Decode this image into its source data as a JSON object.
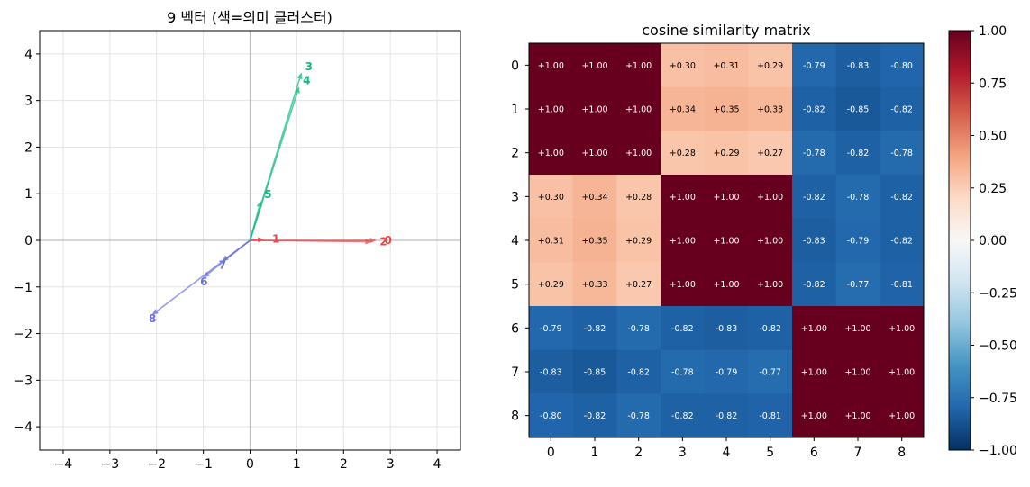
{
  "chart_data": [
    {
      "type": "scatter",
      "title": "9 벡터 (색=의미 클러스터)",
      "xlim": [
        -4.5,
        4.5
      ],
      "ylim": [
        -4.5,
        4.5
      ],
      "xticks": [
        "−4",
        "−3",
        "−2",
        "−1",
        "0",
        "1",
        "2",
        "3",
        "4"
      ],
      "yticks": [
        "4",
        "3",
        "2",
        "1",
        "0",
        "−1",
        "−2",
        "−3",
        "−4"
      ],
      "grid": true,
      "vectors": [
        {
          "label": "0",
          "x": 2.7,
          "y": 0.0,
          "color": "#e5484d"
        },
        {
          "label": "1",
          "x": 0.3,
          "y": 0.02,
          "color": "#e5484d"
        },
        {
          "label": "2",
          "x": 2.6,
          "y": -0.03,
          "color": "#e5484d"
        },
        {
          "label": "3",
          "x": 1.1,
          "y": 3.6,
          "color": "#12b886"
        },
        {
          "label": "4",
          "x": 1.05,
          "y": 3.3,
          "color": "#12b886"
        },
        {
          "label": "5",
          "x": 0.23,
          "y": 0.85,
          "color": "#12b886"
        },
        {
          "label": "6",
          "x": -1.0,
          "y": -0.8,
          "color": "#6a70e0"
        },
        {
          "label": "7",
          "x": -0.6,
          "y": -0.45,
          "color": "#6a70e0"
        },
        {
          "label": "8",
          "x": -2.1,
          "y": -1.6,
          "color": "#6a70e0"
        }
      ]
    },
    {
      "type": "heatmap",
      "title": "cosine similarity matrix",
      "row_labels": [
        "0",
        "1",
        "2",
        "3",
        "4",
        "5",
        "6",
        "7",
        "8"
      ],
      "col_labels": [
        "0",
        "1",
        "2",
        "3",
        "4",
        "5",
        "6",
        "7",
        "8"
      ],
      "colorscale": "RdBu_r",
      "vmin": -1.0,
      "vmax": 1.0,
      "colorbar_ticks": [
        "1.00",
        "0.75",
        "0.50",
        "0.25",
        "0.00",
        "−0.25",
        "−0.50",
        "−0.75",
        "−1.00"
      ],
      "values": [
        [
          1.0,
          1.0,
          1.0,
          0.3,
          0.31,
          0.29,
          -0.79,
          -0.83,
          -0.8
        ],
        [
          1.0,
          1.0,
          1.0,
          0.34,
          0.35,
          0.33,
          -0.82,
          -0.85,
          -0.82
        ],
        [
          1.0,
          1.0,
          1.0,
          0.28,
          0.29,
          0.27,
          -0.78,
          -0.82,
          -0.78
        ],
        [
          0.3,
          0.34,
          0.28,
          1.0,
          1.0,
          1.0,
          -0.82,
          -0.78,
          -0.82
        ],
        [
          0.31,
          0.35,
          0.29,
          1.0,
          1.0,
          1.0,
          -0.83,
          -0.79,
          -0.82
        ],
        [
          0.29,
          0.33,
          0.27,
          1.0,
          1.0,
          1.0,
          -0.82,
          -0.77,
          -0.81
        ],
        [
          -0.79,
          -0.82,
          -0.78,
          -0.82,
          -0.83,
          -0.82,
          1.0,
          1.0,
          1.0
        ],
        [
          -0.83,
          -0.85,
          -0.82,
          -0.78,
          -0.79,
          -0.77,
          1.0,
          1.0,
          1.0
        ],
        [
          -0.8,
          -0.82,
          -0.78,
          -0.82,
          -0.82,
          -0.81,
          1.0,
          1.0,
          1.0
        ]
      ],
      "cell_labels": [
        [
          "+1.00",
          "+1.00",
          "+1.00",
          "+0.30",
          "+0.31",
          "+0.29",
          "-0.79",
          "-0.83",
          "-0.80"
        ],
        [
          "+1.00",
          "+1.00",
          "+1.00",
          "+0.34",
          "+0.35",
          "+0.33",
          "-0.82",
          "-0.85",
          "-0.82"
        ],
        [
          "+1.00",
          "+1.00",
          "+1.00",
          "+0.28",
          "+0.29",
          "+0.27",
          "-0.78",
          "-0.82",
          "-0.78"
        ],
        [
          "+0.30",
          "+0.34",
          "+0.28",
          "+1.00",
          "+1.00",
          "+1.00",
          "-0.82",
          "-0.78",
          "-0.82"
        ],
        [
          "+0.31",
          "+0.35",
          "+0.29",
          "+1.00",
          "+1.00",
          "+1.00",
          "-0.83",
          "-0.79",
          "-0.82"
        ],
        [
          "+0.29",
          "+0.33",
          "+0.27",
          "+1.00",
          "+1.00",
          "+1.00",
          "-0.82",
          "-0.77",
          "-0.81"
        ],
        [
          "-0.79",
          "-0.82",
          "-0.78",
          "-0.82",
          "-0.83",
          "-0.82",
          "+1.00",
          "+1.00",
          "+1.00"
        ],
        [
          "-0.83",
          "-0.85",
          "-0.82",
          "-0.78",
          "-0.79",
          "-0.77",
          "+1.00",
          "+1.00",
          "+1.00"
        ],
        [
          "-0.80",
          "-0.82",
          "-0.78",
          "-0.82",
          "-0.82",
          "-0.81",
          "+1.00",
          "+1.00",
          "+1.00"
        ]
      ]
    }
  ]
}
